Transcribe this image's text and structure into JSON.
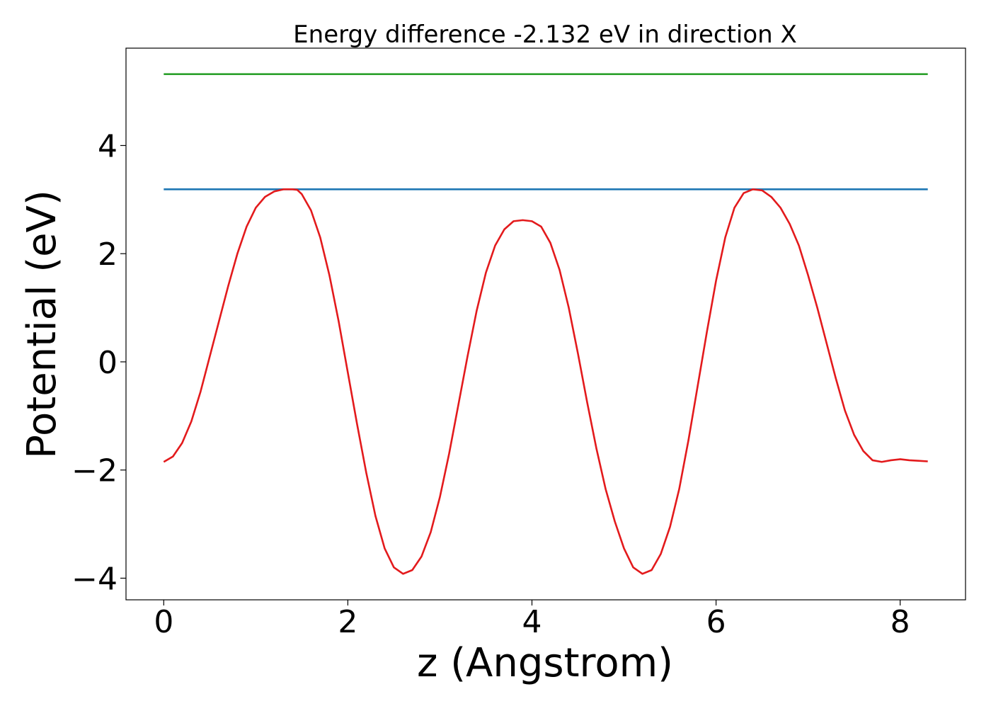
{
  "chart_data": {
    "type": "line",
    "title": "Energy difference -2.132 eV in direction X",
    "xlabel": "z (Angstrom)",
    "ylabel": "Potential (eV)",
    "xlim": [
      -0.41,
      8.71
    ],
    "ylim": [
      -4.4,
      5.8
    ],
    "xticks": [
      0,
      2,
      4,
      6,
      8
    ],
    "yticks": [
      -4,
      -2,
      0,
      2,
      4
    ],
    "xtick_labels": [
      "0",
      "2",
      "4",
      "6",
      "8"
    ],
    "ytick_labels": [
      "−4",
      "−2",
      "0",
      "2",
      "4"
    ],
    "grid": false,
    "legend": null,
    "series": [
      {
        "color": "#2ca02c",
        "x": [
          0,
          8.3
        ],
        "y": [
          5.32,
          5.32
        ]
      },
      {
        "color": "#1f77b4",
        "x": [
          0,
          8.3
        ],
        "y": [
          3.19,
          3.19
        ]
      },
      {
        "color": "#e31a1c",
        "x": [
          0.0,
          0.1,
          0.2,
          0.3,
          0.4,
          0.5,
          0.6,
          0.7,
          0.8,
          0.9,
          1.0,
          1.1,
          1.2,
          1.3,
          1.4,
          1.45,
          1.5,
          1.6,
          1.7,
          1.8,
          1.9,
          2.0,
          2.1,
          2.2,
          2.3,
          2.4,
          2.5,
          2.6,
          2.7,
          2.8,
          2.9,
          3.0,
          3.1,
          3.2,
          3.3,
          3.4,
          3.5,
          3.6,
          3.7,
          3.8,
          3.9,
          4.0,
          4.1,
          4.2,
          4.3,
          4.4,
          4.5,
          4.6,
          4.7,
          4.8,
          4.9,
          5.0,
          5.1,
          5.2,
          5.3,
          5.4,
          5.5,
          5.6,
          5.7,
          5.8,
          5.9,
          6.0,
          6.1,
          6.2,
          6.3,
          6.4,
          6.5,
          6.6,
          6.7,
          6.8,
          6.9,
          7.0,
          7.1,
          7.2,
          7.3,
          7.4,
          7.5,
          7.6,
          7.7,
          7.8,
          7.9,
          8.0,
          8.1,
          8.2,
          8.3
        ],
        "y": [
          -1.85,
          -1.75,
          -1.5,
          -1.1,
          -0.55,
          0.1,
          0.75,
          1.4,
          2.0,
          2.5,
          2.85,
          3.05,
          3.15,
          3.19,
          3.19,
          3.18,
          3.1,
          2.8,
          2.3,
          1.6,
          0.75,
          -0.2,
          -1.15,
          -2.05,
          -2.85,
          -3.45,
          -3.8,
          -3.92,
          -3.85,
          -3.6,
          -3.15,
          -2.5,
          -1.7,
          -0.8,
          0.1,
          0.95,
          1.65,
          2.15,
          2.45,
          2.6,
          2.62,
          2.6,
          2.5,
          2.2,
          1.7,
          1.0,
          0.15,
          -0.75,
          -1.6,
          -2.35,
          -2.95,
          -3.45,
          -3.8,
          -3.92,
          -3.85,
          -3.55,
          -3.05,
          -2.35,
          -1.45,
          -0.45,
          0.55,
          1.5,
          2.3,
          2.85,
          3.12,
          3.19,
          3.17,
          3.05,
          2.85,
          2.55,
          2.15,
          1.6,
          1.0,
          0.35,
          -0.3,
          -0.9,
          -1.35,
          -1.65,
          -1.82,
          -1.85,
          -1.82,
          -1.8,
          -1.82,
          -1.83,
          -1.84
        ]
      }
    ]
  }
}
